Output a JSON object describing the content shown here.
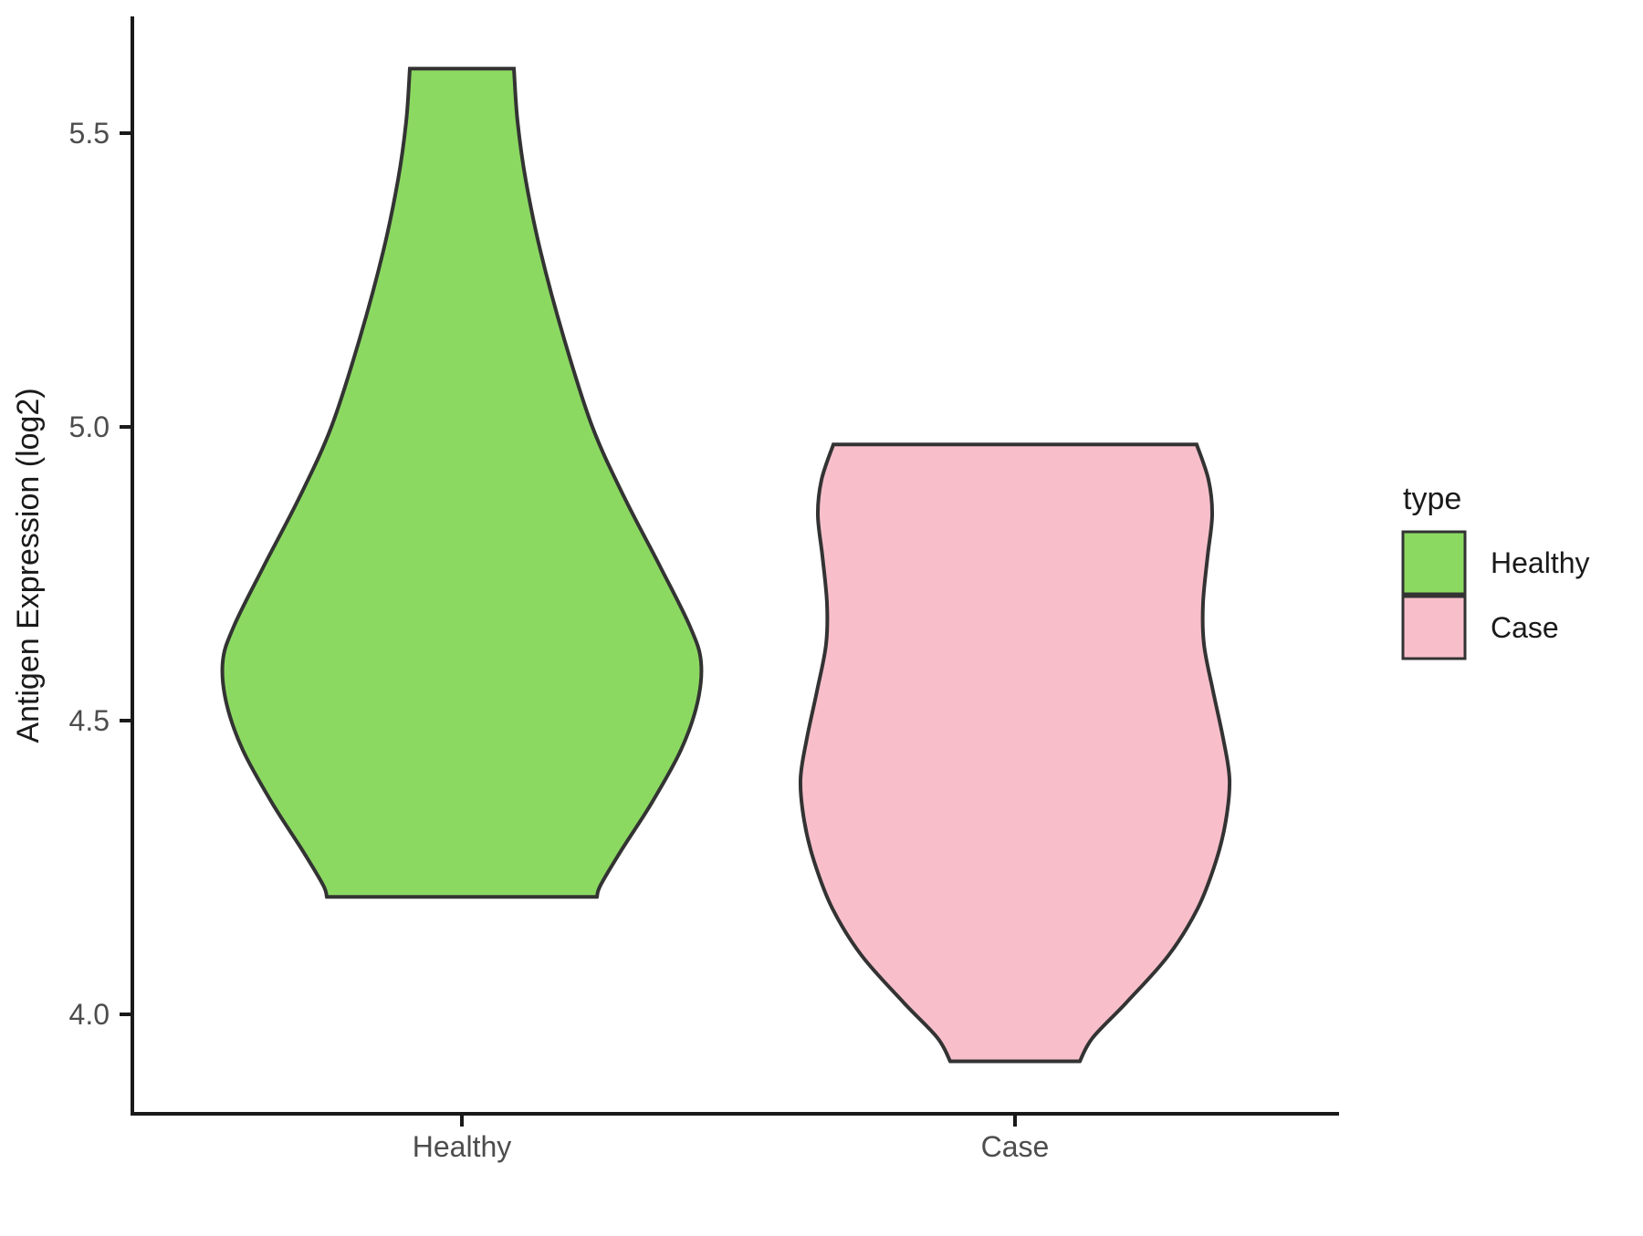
{
  "figure": {
    "background": "#FFFFFF"
  },
  "chart_data": {
    "type": "violin",
    "title": "",
    "xlabel": "",
    "ylabel": "Antigen Expression (log2)",
    "ylim": [
      3.78,
      5.7
    ],
    "grid": false,
    "y_ticks": [
      {
        "value": 4.0,
        "label": "4.0"
      },
      {
        "value": 4.5,
        "label": "4.5"
      },
      {
        "value": 5.0,
        "label": "5.0"
      },
      {
        "value": 5.5,
        "label": "5.5"
      }
    ],
    "categories": [
      "Healthy",
      "Case"
    ],
    "legend": {
      "title": "type",
      "position": "right",
      "entries": [
        {
          "label": "Healthy",
          "color": "#8CD962"
        },
        {
          "label": "Case",
          "color": "#F8BFCB"
        }
      ]
    },
    "series": [
      {
        "name": "Healthy",
        "category": "Healthy",
        "fill": "#8CD962",
        "outline": "#333333",
        "data_range": [
          4.2,
          5.61
        ],
        "profile_value_halfwidthpx": [
          [
            5.61,
            57
          ],
          [
            5.52,
            61
          ],
          [
            5.42,
            70
          ],
          [
            5.3,
            86
          ],
          [
            5.15,
            112
          ],
          [
            5.0,
            143
          ],
          [
            4.88,
            178
          ],
          [
            4.76,
            218
          ],
          [
            4.66,
            250
          ],
          [
            4.6,
            262
          ],
          [
            4.53,
            258
          ],
          [
            4.45,
            240
          ],
          [
            4.36,
            208
          ],
          [
            4.28,
            175
          ],
          [
            4.22,
            152
          ],
          [
            4.2,
            148
          ]
        ]
      },
      {
        "name": "Case",
        "category": "Case",
        "fill": "#F8BFCB",
        "outline": "#333333",
        "data_range": [
          3.92,
          4.97
        ],
        "profile_value_halfwidthpx": [
          [
            4.97,
            199
          ],
          [
            4.91,
            212
          ],
          [
            4.85,
            216
          ],
          [
            4.78,
            211
          ],
          [
            4.7,
            206
          ],
          [
            4.63,
            207
          ],
          [
            4.55,
            217
          ],
          [
            4.47,
            228
          ],
          [
            4.4,
            235
          ],
          [
            4.33,
            231
          ],
          [
            4.26,
            220
          ],
          [
            4.18,
            200
          ],
          [
            4.1,
            168
          ],
          [
            4.02,
            122
          ],
          [
            3.96,
            85
          ],
          [
            3.92,
            71
          ]
        ]
      }
    ],
    "axis_text_color": "#4D4D4D",
    "axis_line_color": "#1A1A1A",
    "text_color": "#1A1A1A"
  }
}
